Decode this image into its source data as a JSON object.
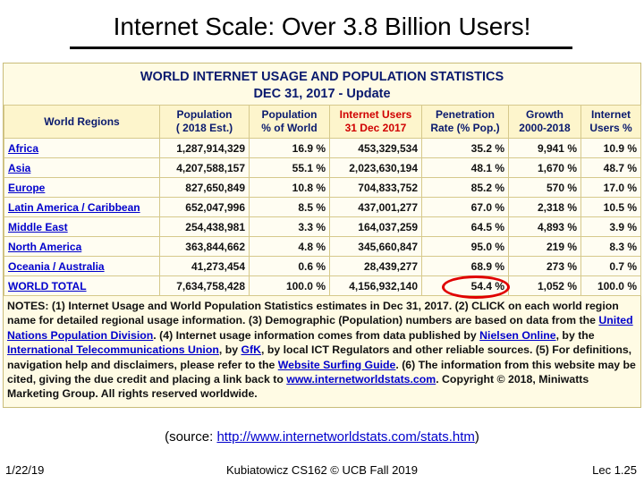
{
  "slide_title": "Internet Scale: Over 3.8 Billion Users!",
  "table": {
    "title_lines": [
      "WORLD INTERNET USAGE AND POPULATION STATISTICS",
      "DEC 31, 2017 - Update"
    ],
    "headers": [
      [
        "World Regions"
      ],
      [
        "Population",
        "( 2018 Est.)"
      ],
      [
        "Population",
        "% of World"
      ],
      [
        "Internet Users",
        "31 Dec 2017"
      ],
      [
        "Penetration",
        "Rate (% Pop.)"
      ],
      [
        "Growth",
        "2000-2018"
      ],
      [
        "Internet",
        "Users %"
      ]
    ],
    "rows": [
      [
        "Africa",
        "1,287,914,329",
        "16.9 %",
        "453,329,534",
        "35.2 %",
        "9,941 %",
        "10.9 %"
      ],
      [
        "Asia",
        "4,207,588,157",
        "55.1 %",
        "2,023,630,194",
        "48.1 %",
        "1,670 %",
        "48.7 %"
      ],
      [
        "Europe",
        "827,650,849",
        "10.8 %",
        "704,833,752",
        "85.2 %",
        "570 %",
        "17.0 %"
      ],
      [
        "Latin America / Caribbean",
        "652,047,996",
        "8.5 %",
        "437,001,277",
        "67.0 %",
        "2,318 %",
        "10.5 %"
      ],
      [
        "Middle East",
        "254,438,981",
        "3.3 %",
        "164,037,259",
        "64.5 %",
        "4,893 %",
        "3.9 %"
      ],
      [
        "North America",
        "363,844,662",
        "4.8 %",
        "345,660,847",
        "95.0 %",
        "219 %",
        "8.3 %"
      ],
      [
        "Oceania / Australia",
        "41,273,454",
        "0.6 %",
        "28,439,277",
        "68.9 %",
        "273 %",
        "0.7 %"
      ],
      [
        "WORLD TOTAL",
        "7,634,758,428",
        "100.0 %",
        "4,156,932,140",
        "54.4 %",
        "1,052 %",
        "100.0 %"
      ]
    ],
    "notes": [
      {
        "text": "NOTES: (1) Internet Usage and World Population Statistics estimates in Dec 31, 2017. (2) CLICK on each world region name for detailed regional usage information. (3) Demographic (Population) numbers are based on data from the "
      },
      {
        "text": "United Nations Population Division",
        "link": true
      },
      {
        "text": ". (4) Internet usage information comes from data published by "
      },
      {
        "text": "Nielsen Online",
        "link": true
      },
      {
        "text": ", by the "
      },
      {
        "text": "International Telecommunications Union",
        "link": true
      },
      {
        "text": ", by "
      },
      {
        "text": "GfK",
        "link": true
      },
      {
        "text": ", by local ICT Regulators and other reliable sources. (5) For definitions, navigation help and disclaimers, please refer to the "
      },
      {
        "text": "Website Surfing Guide",
        "link": true
      },
      {
        "text": ". (6) The information from this website may be cited, giving the due credit and placing a link back to "
      },
      {
        "text": "www.internetworldstats.com",
        "link": true
      },
      {
        "text": ". Copyright © 2018, Miniwatts Marketing Group. All rights reserved worldwide."
      }
    ]
  },
  "source": {
    "open": "(source: ",
    "url": "http://www.internetworldstats.com/stats.htm",
    "close": ")"
  },
  "footer": {
    "date": "1/22/19",
    "center": "Kubiatowicz CS162 © UCB Fall 2019",
    "page": "Lec 1.25"
  }
}
